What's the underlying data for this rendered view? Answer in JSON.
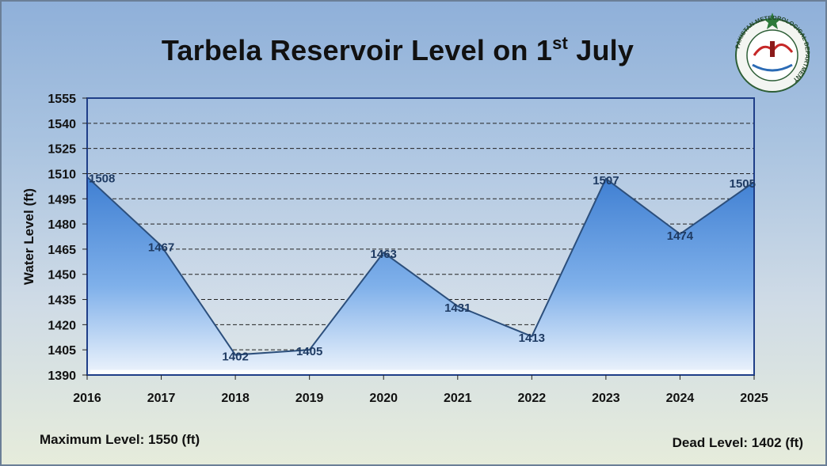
{
  "title_main": "Tarbela Reservoir Level on 1",
  "title_sup": "st",
  "title_tail": " July",
  "logo": {
    "icon": "pakistan-meteorological-department-seal-icon",
    "text": "PAKISTAN METEOROLOGICAL DEPARTMENT"
  },
  "footer": {
    "max_level": "Maximum Level: 1550 (ft)",
    "dead_level": "Dead Level: 1402 (ft)"
  },
  "chart_data": {
    "type": "area",
    "title": "Tarbela Reservoir Level on 1st July",
    "xlabel": "",
    "ylabel": "Water Level (ft)",
    "categories": [
      "2016",
      "2017",
      "2018",
      "2019",
      "2020",
      "2021",
      "2022",
      "2023",
      "2024",
      "2025"
    ],
    "values": [
      1508,
      1467,
      1402,
      1405,
      1463,
      1431,
      1413,
      1507,
      1474,
      1505
    ],
    "data_labels": [
      "1508",
      "1467",
      "1402",
      "1405",
      "1463",
      "1431",
      "1413",
      "1507",
      "1474",
      "1505"
    ],
    "ylim": [
      1390,
      1555
    ],
    "yticks": [
      1390,
      1405,
      1420,
      1435,
      1450,
      1465,
      1480,
      1495,
      1510,
      1525,
      1540,
      1555
    ],
    "ytick_labels": [
      "1390",
      "1405",
      "1420",
      "1435",
      "1450",
      "1465",
      "1480",
      "1495",
      "1510",
      "1525",
      "1540",
      "1555"
    ],
    "grid": true,
    "legend": "none",
    "colors": {
      "area_top": "#4a8ad8",
      "area_bottom": "#e4eefb",
      "edge": "#2c4f7c",
      "label": "#1f3b63",
      "grid": "#222222",
      "plot_border": "#1f3e88"
    }
  }
}
